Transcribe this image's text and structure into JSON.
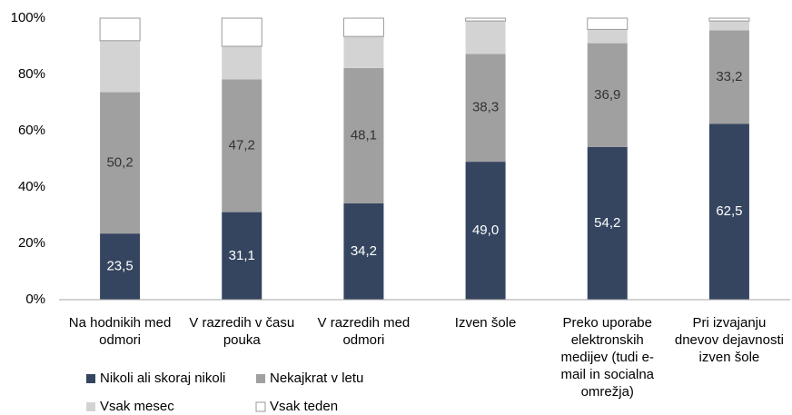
{
  "chart_data": {
    "type": "stacked_bar",
    "categories": [
      "Na hodnikih med odmori",
      "V razredih v času pouka",
      "V razredih med odmori",
      "Izven šole",
      "Preko uporabe elektronskih medijev (tudi e-mail in socialna omrežja)",
      "Pri izvajanju dnevov dejavnosti izven šole"
    ],
    "series": [
      {
        "name": "Nikoli ali skoraj nikoli",
        "color": "#354560",
        "values": [
          23.5,
          31.1,
          34.2,
          49.0,
          54.2,
          62.5
        ],
        "value_labels": [
          "23,5",
          "31,1",
          "34,2",
          "49,0",
          "54,2",
          "62,5"
        ]
      },
      {
        "name": "Nekajkrat v letu",
        "color": "#a0a0a0",
        "values": [
          50.2,
          47.2,
          48.1,
          38.3,
          36.9,
          33.2
        ],
        "value_labels": [
          "50,2",
          "47,2",
          "48,1",
          "38,3",
          "36,9",
          "33,2"
        ]
      },
      {
        "name": "Vsak mesec",
        "color": "#d3d3d3",
        "values": [
          18.3,
          11.7,
          11.2,
          11.7,
          4.9,
          3.3
        ]
      },
      {
        "name": "Vsak teden",
        "color": "#ffffff",
        "values": [
          8.0,
          10.0,
          6.5,
          1.0,
          4.0,
          1.0
        ]
      }
    ],
    "ylim": [
      0,
      100
    ],
    "yticks": [
      {
        "value": 0,
        "label": "0%"
      },
      {
        "value": 20,
        "label": "20%"
      },
      {
        "value": 40,
        "label": "40%"
      },
      {
        "value": 60,
        "label": "60%"
      },
      {
        "value": 80,
        "label": "80%"
      },
      {
        "value": 100,
        "label": "100%"
      }
    ],
    "grid": false
  }
}
